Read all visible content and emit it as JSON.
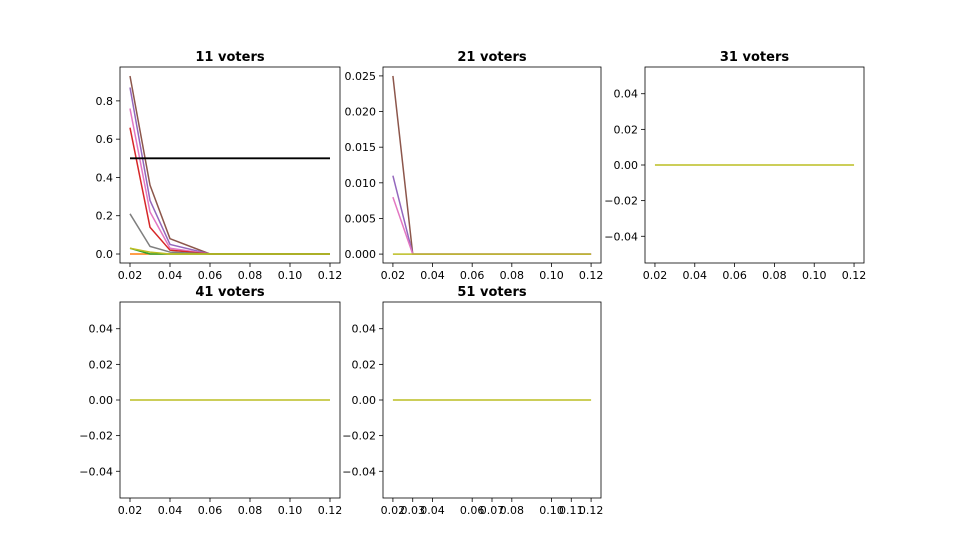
{
  "figure": {
    "background": "#ffffff"
  },
  "chart_data": [
    {
      "type": "line",
      "title": "11 voters",
      "xlim": [
        0.015,
        0.125
      ],
      "ylim": [
        -0.047,
        0.977
      ],
      "xticks": [
        0.02,
        0.04,
        0.06,
        0.08,
        0.1,
        0.12
      ],
      "xtick_labels": [
        "0.02",
        "0.04",
        "0.06",
        "0.08",
        "0.10",
        "0.12"
      ],
      "yticks": [
        0.0,
        0.2,
        0.4,
        0.6,
        0.8
      ],
      "ytick_labels": [
        "0.0",
        "0.2",
        "0.4",
        "0.6",
        "0.8"
      ],
      "grid": false,
      "x": [
        0.02,
        0.03,
        0.04,
        0.06,
        0.08,
        0.1,
        0.12
      ],
      "series": [
        {
          "color": "#8c564b",
          "values": [
            0.93,
            0.36,
            0.08,
            0.0,
            0.0,
            0.0,
            0.0
          ]
        },
        {
          "color": "#9467bd",
          "values": [
            0.87,
            0.28,
            0.05,
            0.0,
            0.0,
            0.0,
            0.0
          ]
        },
        {
          "color": "#e377c2",
          "values": [
            0.76,
            0.22,
            0.03,
            0.0,
            0.0,
            0.0,
            0.0
          ]
        },
        {
          "color": "#d62728",
          "values": [
            0.66,
            0.14,
            0.02,
            0.0,
            0.0,
            0.0,
            0.0
          ]
        },
        {
          "color": "#7f7f7f",
          "values": [
            0.21,
            0.04,
            0.01,
            0.0,
            0.0,
            0.0,
            0.0
          ]
        },
        {
          "color": "#ff7f0e",
          "values": [
            0.0,
            0.0,
            0.0,
            0.0,
            0.0,
            0.0,
            0.0
          ]
        },
        {
          "color": "#2ca02c",
          "values": [
            0.03,
            0.0,
            0.0,
            0.0,
            0.0,
            0.0,
            0.0
          ]
        },
        {
          "color": "#bcbd22",
          "values": [
            0.03,
            0.01,
            0.0,
            0.0,
            0.0,
            0.0,
            0.0
          ]
        }
      ],
      "hlines": [
        {
          "y": 0.5,
          "color": "#000000"
        }
      ]
    },
    {
      "type": "line",
      "title": "21 voters",
      "xlim": [
        0.015,
        0.125
      ],
      "ylim": [
        -0.00125,
        0.02625
      ],
      "xticks": [
        0.02,
        0.04,
        0.06,
        0.08,
        0.1,
        0.12
      ],
      "xtick_labels": [
        "0.02",
        "0.04",
        "0.06",
        "0.08",
        "0.10",
        "0.12"
      ],
      "yticks": [
        0.0,
        0.005,
        0.01,
        0.015,
        0.02,
        0.025
      ],
      "ytick_labels": [
        "0.000",
        "0.005",
        "0.010",
        "0.015",
        "0.020",
        "0.025"
      ],
      "grid": false,
      "x": [
        0.02,
        0.03,
        0.04,
        0.06,
        0.08,
        0.1,
        0.12
      ],
      "series": [
        {
          "color": "#8c564b",
          "values": [
            0.025,
            0.0,
            0.0,
            0.0,
            0.0,
            0.0,
            0.0
          ]
        },
        {
          "color": "#9467bd",
          "values": [
            0.011,
            0.0,
            0.0,
            0.0,
            0.0,
            0.0,
            0.0
          ]
        },
        {
          "color": "#e377c2",
          "values": [
            0.008,
            0.0,
            0.0,
            0.0,
            0.0,
            0.0,
            0.0
          ]
        },
        {
          "color": "#bcbd22",
          "values": [
            0.0,
            0.0,
            0.0,
            0.0,
            0.0,
            0.0,
            0.0
          ]
        }
      ]
    },
    {
      "type": "line",
      "title": "31 voters",
      "xlim": [
        0.015,
        0.125
      ],
      "ylim": [
        -0.055,
        0.055
      ],
      "xticks": [
        0.02,
        0.04,
        0.06,
        0.08,
        0.1,
        0.12
      ],
      "xtick_labels": [
        "0.02",
        "0.04",
        "0.06",
        "0.08",
        "0.10",
        "0.12"
      ],
      "yticks": [
        -0.04,
        -0.02,
        0.0,
        0.02,
        0.04
      ],
      "ytick_labels": [
        "−0.04",
        "−0.02",
        "0.00",
        "0.02",
        "0.04"
      ],
      "grid": false,
      "x": [
        0.02,
        0.12
      ],
      "series": [
        {
          "color": "#bcbd22",
          "values": [
            0.0,
            0.0
          ]
        }
      ]
    },
    {
      "type": "line",
      "title": "41 voters",
      "xlim": [
        0.015,
        0.125
      ],
      "ylim": [
        -0.055,
        0.055
      ],
      "xticks": [
        0.02,
        0.04,
        0.06,
        0.08,
        0.1,
        0.12
      ],
      "xtick_labels": [
        "0.02",
        "0.04",
        "0.06",
        "0.08",
        "0.10",
        "0.12"
      ],
      "yticks": [
        -0.04,
        -0.02,
        0.0,
        0.02,
        0.04
      ],
      "ytick_labels": [
        "−0.04",
        "−0.02",
        "0.00",
        "0.02",
        "0.04"
      ],
      "grid": false,
      "x": [
        0.02,
        0.12
      ],
      "series": [
        {
          "color": "#bcbd22",
          "values": [
            0.0,
            0.0
          ]
        }
      ]
    },
    {
      "type": "line",
      "title": "51 voters",
      "xlim": [
        0.015,
        0.125
      ],
      "ylim": [
        -0.055,
        0.055
      ],
      "xticks": [
        0.02,
        0.03,
        0.04,
        0.06,
        0.07,
        0.08,
        0.1,
        0.11,
        0.12
      ],
      "xtick_labels": [
        "0.02",
        "0.03",
        "0.04",
        "0.06",
        "0.07",
        "0.08",
        "0.10",
        "0.11",
        "0.12"
      ],
      "yticks": [
        -0.04,
        -0.02,
        0.0,
        0.02,
        0.04
      ],
      "ytick_labels": [
        "−0.04",
        "−0.02",
        "0.00",
        "0.02",
        "0.04"
      ],
      "grid": false,
      "x": [
        0.02,
        0.12
      ],
      "series": [
        {
          "color": "#bcbd22",
          "values": [
            0.0,
            0.0
          ]
        }
      ]
    }
  ]
}
